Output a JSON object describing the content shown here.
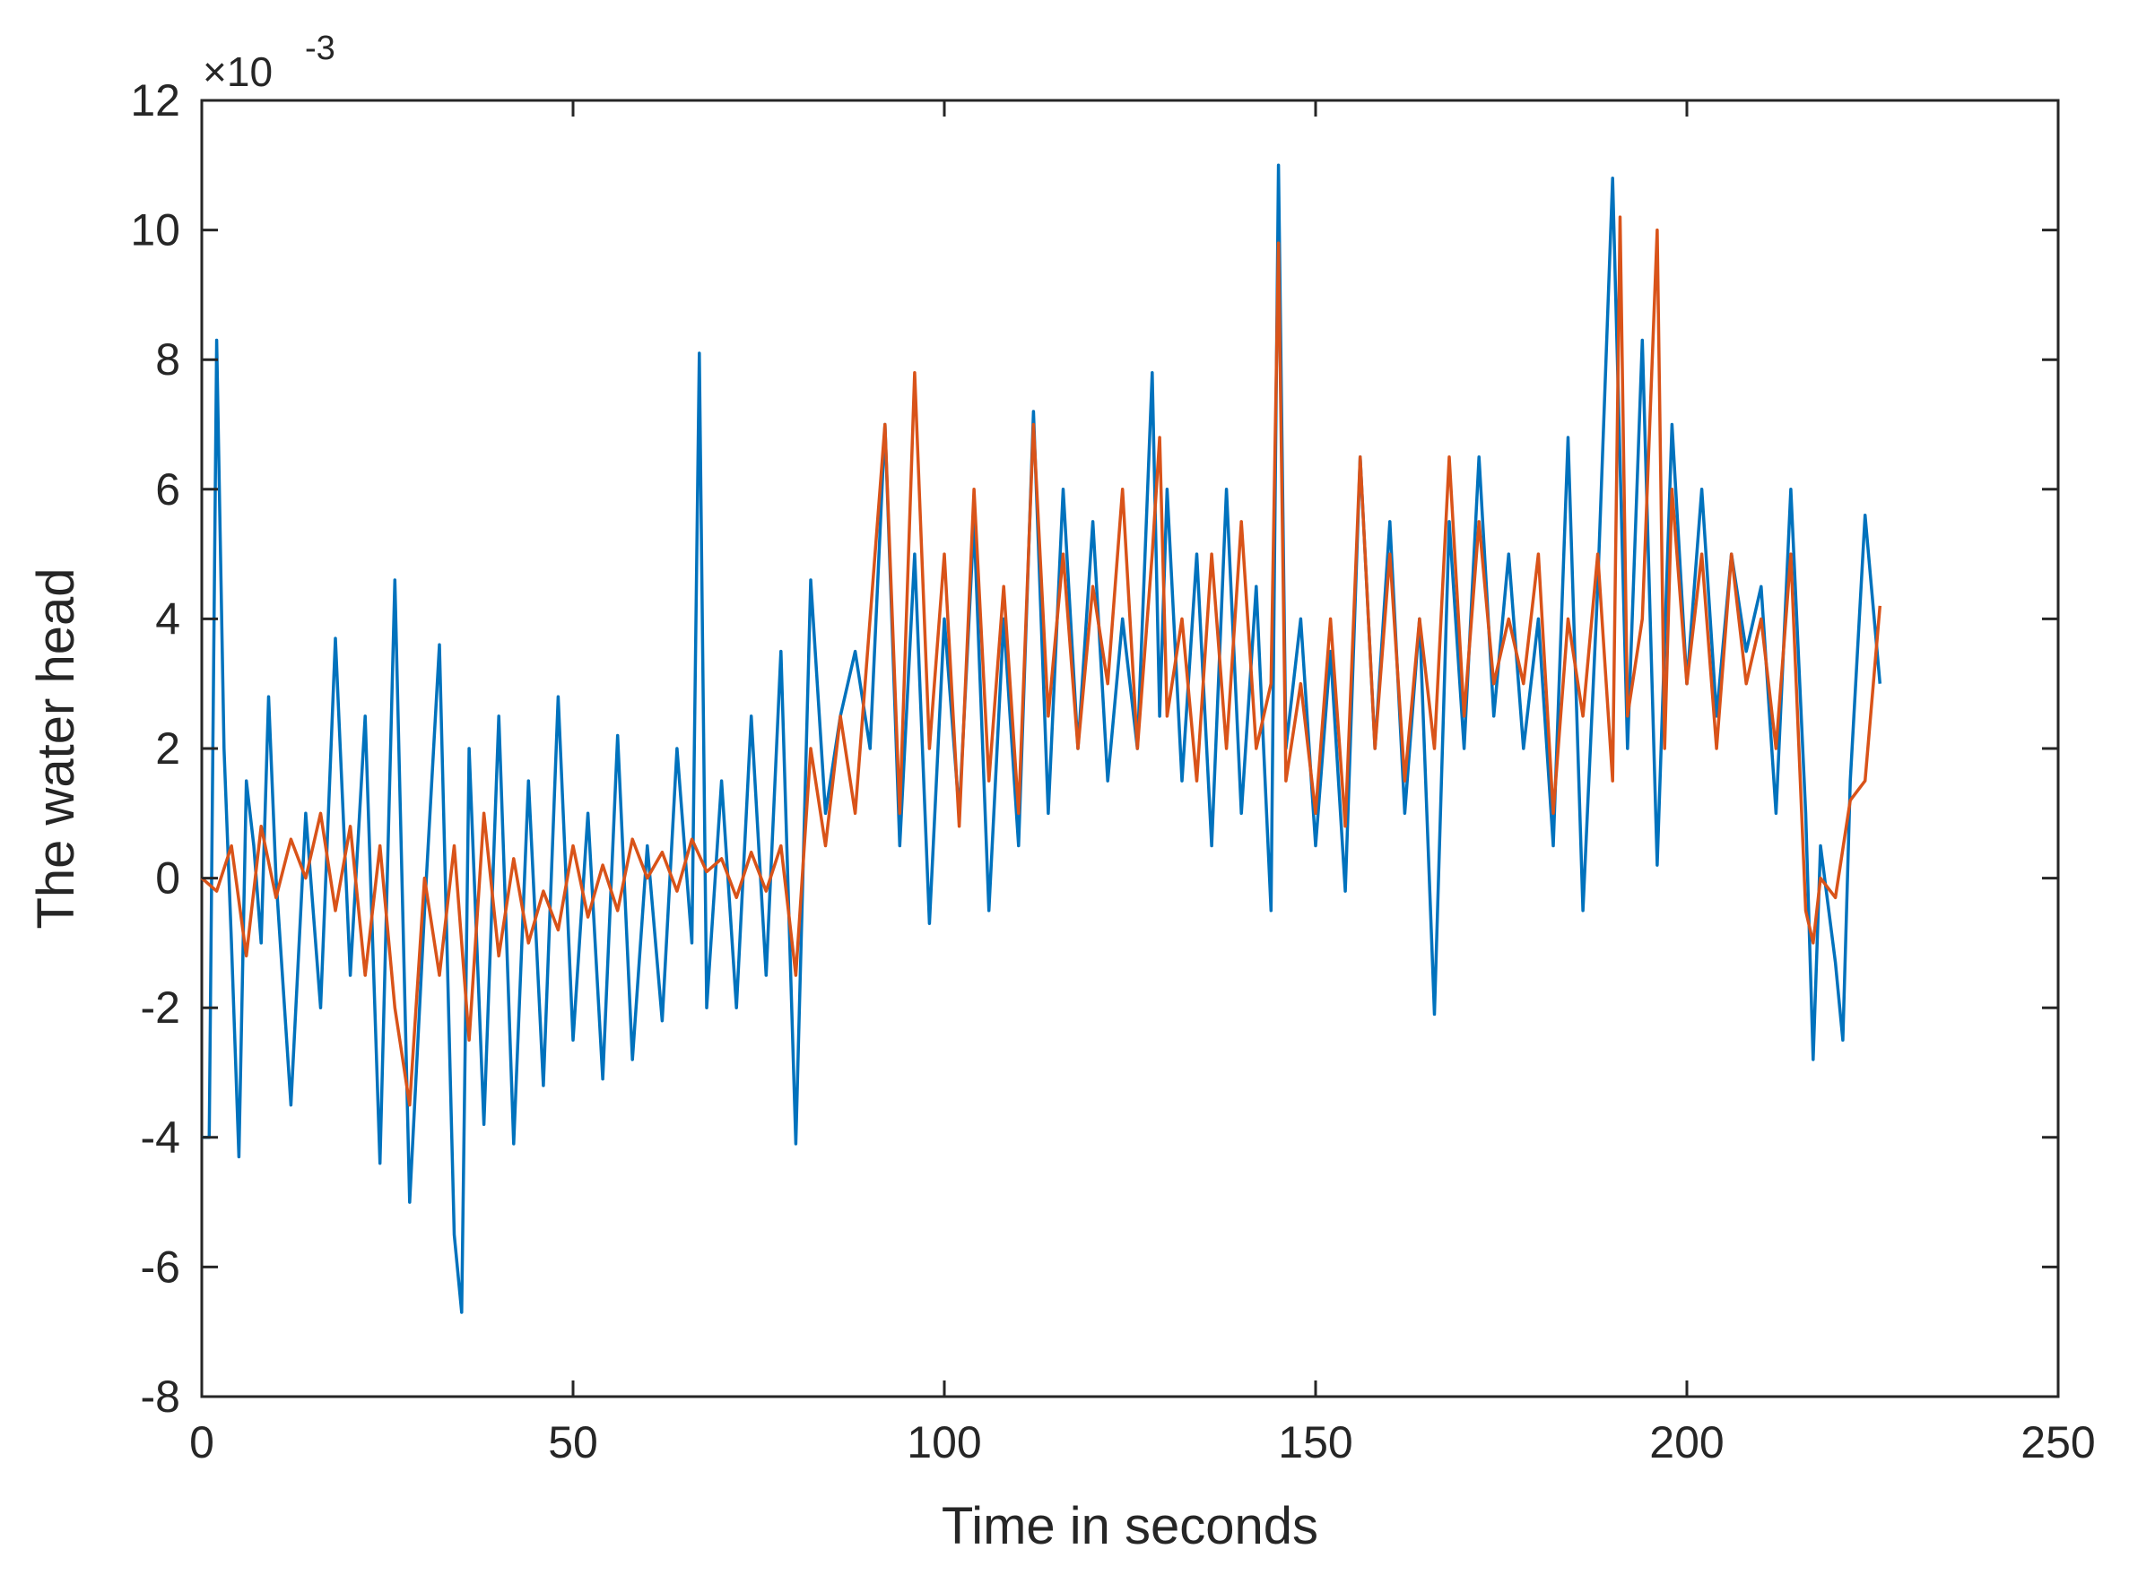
{
  "chart_data": {
    "type": "line",
    "title": "",
    "xlabel": "Time in seconds",
    "ylabel": "The water head",
    "y_exponent_label": "×10",
    "y_exponent_power": "-3",
    "xlim": [
      0,
      250
    ],
    "ylim": [
      -8,
      12
    ],
    "x_ticks": [
      0,
      50,
      100,
      150,
      200,
      250
    ],
    "y_ticks": [
      -8,
      -6,
      -4,
      -2,
      0,
      2,
      4,
      6,
      8,
      10,
      12
    ],
    "x_tick_labels": [
      "0",
      "50",
      "100",
      "150",
      "200",
      "250"
    ],
    "y_tick_labels": [
      "-8",
      "-6",
      "-4",
      "-2",
      "0",
      "2",
      "4",
      "6",
      "8",
      "10",
      "12"
    ],
    "grid": false,
    "legend": "none",
    "series": [
      {
        "color": "#0072BD",
        "x": [
          0,
          1,
          2,
          3,
          4,
          5,
          6,
          7,
          8,
          9,
          10,
          12,
          14,
          16,
          18,
          20,
          22,
          24,
          26,
          28,
          30,
          32,
          34,
          35,
          36,
          38,
          40,
          42,
          44,
          46,
          48,
          50,
          52,
          54,
          56,
          58,
          60,
          62,
          64,
          66,
          67,
          68,
          70,
          72,
          74,
          76,
          78,
          80,
          82,
          84,
          86,
          88,
          90,
          92,
          94,
          96,
          98,
          100,
          102,
          104,
          106,
          108,
          110,
          112,
          114,
          116,
          118,
          120,
          122,
          124,
          126,
          128,
          129,
          130,
          132,
          134,
          136,
          138,
          140,
          142,
          144,
          145,
          146,
          148,
          150,
          152,
          154,
          156,
          158,
          160,
          162,
          164,
          166,
          168,
          170,
          172,
          174,
          176,
          178,
          180,
          182,
          184,
          186,
          188,
          190,
          192,
          194,
          196,
          198,
          200,
          202,
          204,
          206,
          208,
          210,
          212,
          214,
          216,
          217,
          218,
          220,
          221,
          222,
          224,
          226
        ],
        "y": [
          -4.0,
          -4.0,
          8.3,
          2.0,
          -1.0,
          -4.3,
          1.5,
          0.5,
          -1.0,
          2.8,
          0.0,
          -3.5,
          1.0,
          -2.0,
          3.7,
          -1.5,
          2.5,
          -4.4,
          4.6,
          -5.0,
          -0.5,
          3.6,
          -5.5,
          -6.7,
          2.0,
          -3.8,
          2.5,
          -4.1,
          1.5,
          -3.2,
          2.8,
          -2.5,
          1.0,
          -3.1,
          2.2,
          -2.8,
          0.5,
          -2.2,
          2.0,
          -1.0,
          8.1,
          -2.0,
          1.5,
          -2.0,
          2.5,
          -1.5,
          3.5,
          -4.1,
          4.6,
          1.0,
          2.5,
          3.5,
          2.0,
          7.0,
          0.5,
          5.0,
          -0.7,
          4.0,
          1.0,
          5.5,
          -0.5,
          4.0,
          0.5,
          7.2,
          1.0,
          6.0,
          2.0,
          5.5,
          1.5,
          4.0,
          2.0,
          7.8,
          2.5,
          6.0,
          1.5,
          5.0,
          0.5,
          6.0,
          1.0,
          4.5,
          -0.5,
          11.0,
          2.0,
          4.0,
          0.5,
          3.5,
          -0.2,
          6.5,
          2.0,
          5.5,
          1.0,
          4.0,
          -2.1,
          5.5,
          2.0,
          6.5,
          2.5,
          5.0,
          2.0,
          4.0,
          0.5,
          6.8,
          -0.5,
          4.5,
          10.8,
          2.0,
          8.3,
          0.2,
          7.0,
          3.0,
          6.0,
          2.5,
          5.0,
          3.5,
          4.5,
          1.0,
          6.0,
          1.0,
          -2.8,
          0.5,
          -1.3,
          -2.5,
          1.5,
          5.6,
          3.0
        ]
      },
      {
        "color": "#D95319",
        "x": [
          0,
          2,
          4,
          6,
          8,
          10,
          12,
          14,
          16,
          18,
          20,
          22,
          24,
          26,
          28,
          30,
          32,
          34,
          36,
          38,
          40,
          42,
          44,
          46,
          48,
          50,
          52,
          54,
          56,
          58,
          60,
          62,
          64,
          66,
          68,
          70,
          72,
          74,
          76,
          78,
          80,
          82,
          84,
          86,
          88,
          90,
          92,
          94,
          96,
          98,
          100,
          102,
          104,
          106,
          108,
          110,
          112,
          114,
          116,
          118,
          120,
          122,
          124,
          126,
          128,
          129,
          130,
          132,
          134,
          136,
          138,
          140,
          142,
          144,
          145,
          146,
          148,
          150,
          152,
          154,
          156,
          158,
          160,
          162,
          164,
          166,
          168,
          170,
          172,
          174,
          176,
          178,
          180,
          182,
          184,
          186,
          188,
          190,
          191,
          192,
          194,
          196,
          197,
          198,
          200,
          202,
          204,
          206,
          208,
          210,
          212,
          214,
          216,
          217,
          218,
          220,
          222,
          224,
          226
        ],
        "y": [
          0.0,
          -0.2,
          0.5,
          -1.2,
          0.8,
          -0.3,
          0.6,
          0.0,
          1.0,
          -0.5,
          0.8,
          -1.5,
          0.5,
          -2.0,
          -3.5,
          0.0,
          -1.5,
          0.5,
          -2.5,
          1.0,
          -1.2,
          0.3,
          -1.0,
          -0.2,
          -0.8,
          0.5,
          -0.6,
          0.2,
          -0.5,
          0.6,
          0.0,
          0.4,
          -0.2,
          0.6,
          0.1,
          0.3,
          -0.3,
          0.4,
          -0.2,
          0.5,
          -1.5,
          2.0,
          0.5,
          2.5,
          1.0,
          4.0,
          7.0,
          1.0,
          7.8,
          2.0,
          5.0,
          0.8,
          6.0,
          1.5,
          4.5,
          1.0,
          7.0,
          2.5,
          5.0,
          2.0,
          4.5,
          3.0,
          6.0,
          2.0,
          5.0,
          6.8,
          2.5,
          4.0,
          1.5,
          5.0,
          2.0,
          5.5,
          2.0,
          3.0,
          9.8,
          1.5,
          3.0,
          1.0,
          4.0,
          0.8,
          6.5,
          2.0,
          5.0,
          1.5,
          4.0,
          2.0,
          6.5,
          2.5,
          5.5,
          3.0,
          4.0,
          3.0,
          5.0,
          1.0,
          4.0,
          2.5,
          5.0,
          1.5,
          10.2,
          2.5,
          4.0,
          10.0,
          2.0,
          6.0,
          3.0,
          5.0,
          2.0,
          5.0,
          3.0,
          4.0,
          2.0,
          5.0,
          -0.5,
          -1.0,
          0.0,
          -0.3,
          1.2,
          1.5,
          4.2
        ]
      }
    ]
  }
}
